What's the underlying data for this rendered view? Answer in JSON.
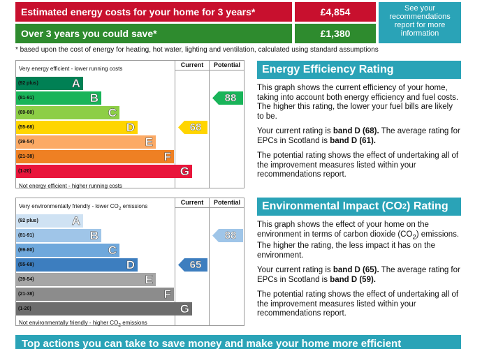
{
  "summary": {
    "cost_label": "Estimated energy costs for your home for 3 years*",
    "cost_value": "£4,854",
    "save_label": "Over 3 years you could save*",
    "save_value": "£1,380",
    "recommendations_link": "See your recommendations report for more information"
  },
  "footnote": "* based upon the cost of energy for heating, hot water, lighting and ventilation, calculated using standard assumptions",
  "energy_chart": {
    "top_caption": "Very energy efficient - lower running costs",
    "bottom_caption": "Not energy efficient - higher running costs",
    "current_header": "Current",
    "potential_header": "Potential",
    "current": "68",
    "potential": "88",
    "bands": [
      {
        "range": "(92 plus)",
        "letter": "A",
        "color": "#008054"
      },
      {
        "range": "(81-91)",
        "letter": "B",
        "color": "#19b459"
      },
      {
        "range": "(69-80)",
        "letter": "C",
        "color": "#8dce46"
      },
      {
        "range": "(55-68)",
        "letter": "D",
        "color": "#ffd500"
      },
      {
        "range": "(39-54)",
        "letter": "E",
        "color": "#fcaa65"
      },
      {
        "range": "(21-38)",
        "letter": "F",
        "color": "#ef8023"
      },
      {
        "range": "(1-20)",
        "letter": "G",
        "color": "#e9153b"
      }
    ],
    "current_color": "#ffd500",
    "potential_color": "#19b459"
  },
  "env_chart": {
    "top_caption_pre": "Very environmentally friendly - lower CO",
    "top_caption_sub": "2",
    "top_caption_post": " emissions",
    "bottom_caption_pre": "Not environmentally friendly - higher CO",
    "bottom_caption_sub": "2",
    "bottom_caption_post": " emissions",
    "current_header": "Current",
    "potential_header": "Potential",
    "current": "65",
    "potential": "88",
    "bands": [
      {
        "range": "(92 plus)",
        "letter": "A",
        "color": "#cfe2f3"
      },
      {
        "range": "(81-91)",
        "letter": "B",
        "color": "#9fc5e8"
      },
      {
        "range": "(69-80)",
        "letter": "C",
        "color": "#6fa8dc"
      },
      {
        "range": "(55-68)",
        "letter": "D",
        "color": "#3d7ebf"
      },
      {
        "range": "(39-54)",
        "letter": "E",
        "color": "#a6a6a6"
      },
      {
        "range": "(21-38)",
        "letter": "F",
        "color": "#8c8c8c"
      },
      {
        "range": "(1-20)",
        "letter": "G",
        "color": "#6d6d6d"
      }
    ],
    "current_color": "#3d7ebf",
    "potential_color": "#9fc5e8"
  },
  "energy_panel": {
    "title": "Energy Efficiency Rating",
    "p1": "This graph shows the current efficiency of your home, taking into account both energy efficiency and fuel costs. The higher this rating, the lower your fuel bills are likely to be.",
    "p2_pre": "Your current rating is ",
    "p2_bold1": "band D (68).",
    "p2_mid": " The average rating for EPCs in Scotland is ",
    "p2_bold2": "band D (61).",
    "p3": "The potential rating shows the effect of undertaking all of the improvement measures listed within your recommendations report."
  },
  "env_panel": {
    "title_pre": "Environmental Impact (CO",
    "title_sub": "2",
    "title_post": ") Rating",
    "p1_pre": "This graph shows the effect of your home on the environment in terms of carbon dioxide (CO",
    "p1_sub": "2",
    "p1_post": ") emissions. The higher the rating, the less impact it has on the environment.",
    "p2_pre": "Your current rating is ",
    "p2_bold1": "band D (65).",
    "p2_mid": " The average rating for EPCs in Scotland is ",
    "p2_bold2": "band D (59).",
    "p3": "The potential rating shows the effect of undertaking all of the improvement measures listed within your recommendations report."
  },
  "bottom_banner": "Top actions you can take to save money and make your home more efficient"
}
